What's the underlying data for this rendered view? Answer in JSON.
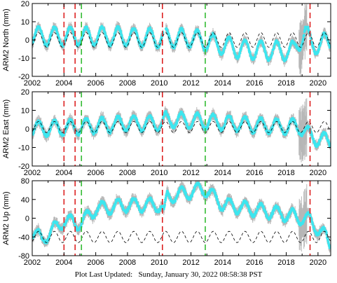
{
  "colors": {
    "data": "#3de6ef",
    "error_bars": "#b0b0b0",
    "model": "#000000",
    "event_equipment": "#dd2222",
    "event_other": "#33bb33",
    "frame": "#000000"
  },
  "footer": {
    "label": "Plot Last Updated:",
    "timestamp": "Sunday, January 30, 2022 08:58:38 PST"
  },
  "chart_data": [
    {
      "type": "scatter",
      "ylabel": "ARM2 North (mm)",
      "xlim": [
        2002,
        2020.8
      ],
      "ylim": [
        -20,
        20
      ],
      "yticks": [
        -20,
        -10,
        0,
        10,
        20
      ],
      "xticks": [
        2002,
        2004,
        2006,
        2008,
        2010,
        2012,
        2014,
        2016,
        2018,
        2020
      ],
      "grid": false,
      "series_description": "daily position residuals with error bars, seasonal model dashed",
      "trend": [
        [
          2002.0,
          2
        ],
        [
          2004.0,
          2
        ],
        [
          2007.0,
          2
        ],
        [
          2010.0,
          1
        ],
        [
          2012.0,
          1
        ],
        [
          2013.0,
          -1
        ],
        [
          2015.0,
          -5
        ],
        [
          2017.0,
          -6
        ],
        [
          2018.5,
          -6
        ],
        [
          2019.2,
          5
        ],
        [
          2019.6,
          -3
        ],
        [
          2020.7,
          -1
        ]
      ],
      "seasonal_amplitude": 5,
      "model_amplitude": 4,
      "model_offset": 0,
      "events_red": [
        2004.0,
        2004.7,
        2010.2,
        2019.5
      ],
      "events_green": [
        2005.1,
        2012.9
      ]
    },
    {
      "type": "scatter",
      "ylabel": "ARM2 East (mm)",
      "xlim": [
        2002,
        2020.8
      ],
      "ylim": [
        -20,
        20
      ],
      "yticks": [
        -20,
        -10,
        0,
        10,
        20
      ],
      "xticks": [
        2002,
        2004,
        2006,
        2008,
        2010,
        2012,
        2014,
        2016,
        2018,
        2020
      ],
      "grid": false,
      "series_description": "daily position residuals with error bars, seasonal model dashed",
      "trend": [
        [
          2002.0,
          0
        ],
        [
          2005.0,
          1
        ],
        [
          2008.0,
          3
        ],
        [
          2010.2,
          3
        ],
        [
          2010.4,
          5
        ],
        [
          2013.0,
          4
        ],
        [
          2016.0,
          2
        ],
        [
          2018.9,
          1
        ],
        [
          2019.5,
          -4
        ],
        [
          2020.7,
          -7
        ]
      ],
      "seasonal_amplitude": 4,
      "model_amplitude": 3,
      "model_offset": 1,
      "events_red": [
        2004.0,
        2004.7,
        2010.2,
        2019.5
      ],
      "events_green": [
        2005.1,
        2012.9
      ]
    },
    {
      "type": "scatter",
      "ylabel": "ARM2 Up (mm)",
      "xlim": [
        2002,
        2020.8
      ],
      "ylim": [
        -80,
        80
      ],
      "yticks": [
        -80,
        -40,
        0,
        40,
        80
      ],
      "xticks": [
        2002,
        2004,
        2006,
        2008,
        2010,
        2012,
        2014,
        2016,
        2018,
        2020
      ],
      "grid": false,
      "series_description": "daily position residuals with error bars, seasonal model dashed",
      "trend": [
        [
          2002.0,
          -30
        ],
        [
          2002.6,
          -45
        ],
        [
          2003.5,
          -20
        ],
        [
          2004.0,
          -5
        ],
        [
          2004.7,
          -10
        ],
        [
          2005.1,
          -10
        ],
        [
          2006.0,
          20
        ],
        [
          2008.0,
          28
        ],
        [
          2010.1,
          28
        ],
        [
          2010.3,
          10
        ],
        [
          2010.5,
          45
        ],
        [
          2012.5,
          60
        ],
        [
          2012.9,
          62
        ],
        [
          2014.0,
          30
        ],
        [
          2016.0,
          18
        ],
        [
          2018.0,
          8
        ],
        [
          2019.5,
          -5
        ],
        [
          2020.5,
          -40
        ],
        [
          2020.7,
          -55
        ]
      ],
      "seasonal_amplitude": 14,
      "model_amplitude": 12,
      "model_offset": -40,
      "events_red": [
        2004.0,
        2004.7,
        2010.2,
        2019.5
      ],
      "events_green": [
        2005.1,
        2012.9
      ]
    }
  ]
}
